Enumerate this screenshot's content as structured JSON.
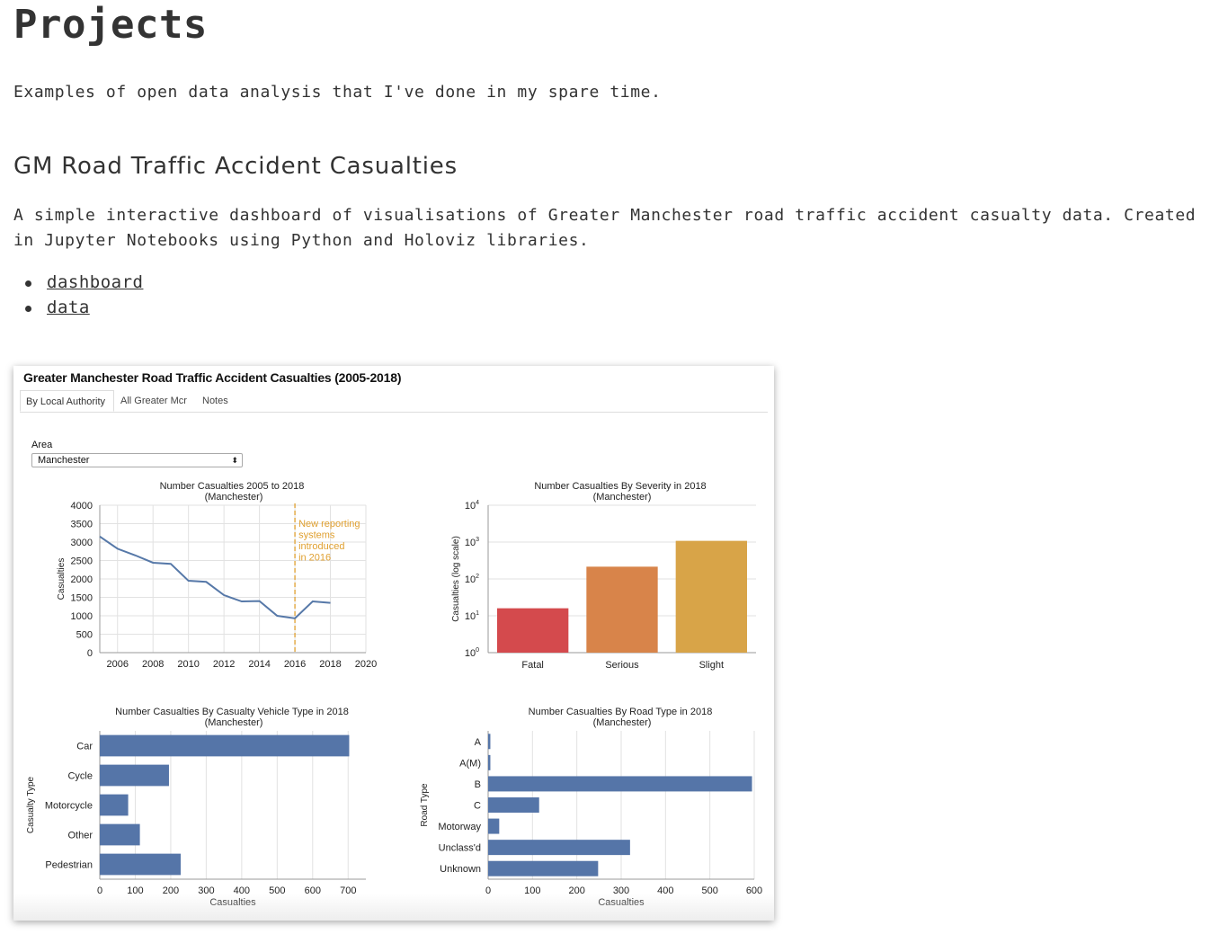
{
  "page": {
    "title": "Projects",
    "intro": "Examples of open data analysis that I've done in my spare time."
  },
  "project": {
    "title": "GM Road Traffic Accident Casualties",
    "description": "A simple interactive dashboard of visualisations of Greater Manchester road traffic accident casualty data. Created in Jupyter Notebooks using Python and Holoviz libraries.",
    "links": [
      {
        "label": "dashboard"
      },
      {
        "label": "data"
      }
    ]
  },
  "dashboard": {
    "title": "Greater Manchester Road Traffic Accident Casualties (2005-2018)",
    "tabs": [
      {
        "label": "By Local Authority",
        "active": true
      },
      {
        "label": "All Greater Mcr",
        "active": false
      },
      {
        "label": "Notes",
        "active": false
      }
    ],
    "area_label": "Area",
    "area_value": "Manchester",
    "select_arrow": "⬍"
  },
  "chart_data": [
    {
      "type": "line",
      "title": "Number Casualties 2005 to 2018",
      "subtitle": "(Manchester)",
      "xlabel": "",
      "ylabel": "Casualties",
      "x": [
        2005,
        2006,
        2007,
        2008,
        2009,
        2010,
        2011,
        2012,
        2013,
        2014,
        2015,
        2016,
        2017,
        2018
      ],
      "y": [
        3150,
        2820,
        2640,
        2440,
        2410,
        1950,
        1920,
        1560,
        1390,
        1400,
        1000,
        930,
        1390,
        1350
      ],
      "xlim": [
        2005,
        2020
      ],
      "ylim": [
        0,
        4000
      ],
      "xticks": [
        "2006",
        "2008",
        "2010",
        "2012",
        "2014",
        "2016",
        "2018",
        "2020"
      ],
      "yticks": [
        "0",
        "500",
        "1000",
        "1500",
        "2000",
        "2500",
        "3000",
        "3500",
        "4000"
      ],
      "grid": true,
      "color": "#5678a8",
      "annotation": {
        "x": 2016,
        "lines": [
          "New reporting",
          "systems",
          "introduced",
          "in 2016"
        ],
        "color": "#e0a030"
      }
    },
    {
      "type": "bar",
      "title": "Number Casualties By Severity in 2018",
      "subtitle": "(Manchester)",
      "ylabel": "Casualties (log scale)",
      "log_scale": true,
      "categories": [
        "Fatal",
        "Serious",
        "Slight"
      ],
      "values": [
        16,
        215,
        1080
      ],
      "colors": [
        "#d44a4d",
        "#d8844a",
        "#d8a448"
      ],
      "ylim": [
        1,
        10000
      ],
      "ytick_base": "10",
      "ytick_exponents": [
        "0",
        "1",
        "2",
        "3",
        "4"
      ],
      "grid": true
    },
    {
      "type": "bar",
      "orientation": "horizontal",
      "title": "Number Casualties By Casualty Vehicle Type in 2018",
      "subtitle": "(Manchester)",
      "xlabel": "Casualties",
      "ylabel": "Casualty Type",
      "categories": [
        "Car",
        "Cycle",
        "Motorcycle",
        "Other",
        "Pedestrian"
      ],
      "values": [
        703,
        195,
        80,
        113,
        228
      ],
      "xlim": [
        0,
        750
      ],
      "xticks": [
        "0",
        "100",
        "200",
        "300",
        "400",
        "500",
        "600",
        "700"
      ],
      "grid": true,
      "color": "#5575a8"
    },
    {
      "type": "bar",
      "orientation": "horizontal",
      "title": "Number Casualties By Road Type in 2018",
      "subtitle": "(Manchester)",
      "xlabel": "Casualties",
      "ylabel": "Road Type",
      "categories": [
        "A",
        "A(M)",
        "B",
        "C",
        "Motorway",
        "Unclass'd",
        "Unknown"
      ],
      "values": [
        5,
        5,
        595,
        115,
        25,
        320,
        248
      ],
      "xlim": [
        0,
        600
      ],
      "xticks": [
        "0",
        "100",
        "200",
        "300",
        "400",
        "500",
        "600"
      ],
      "grid": true,
      "color": "#5575a8"
    }
  ]
}
